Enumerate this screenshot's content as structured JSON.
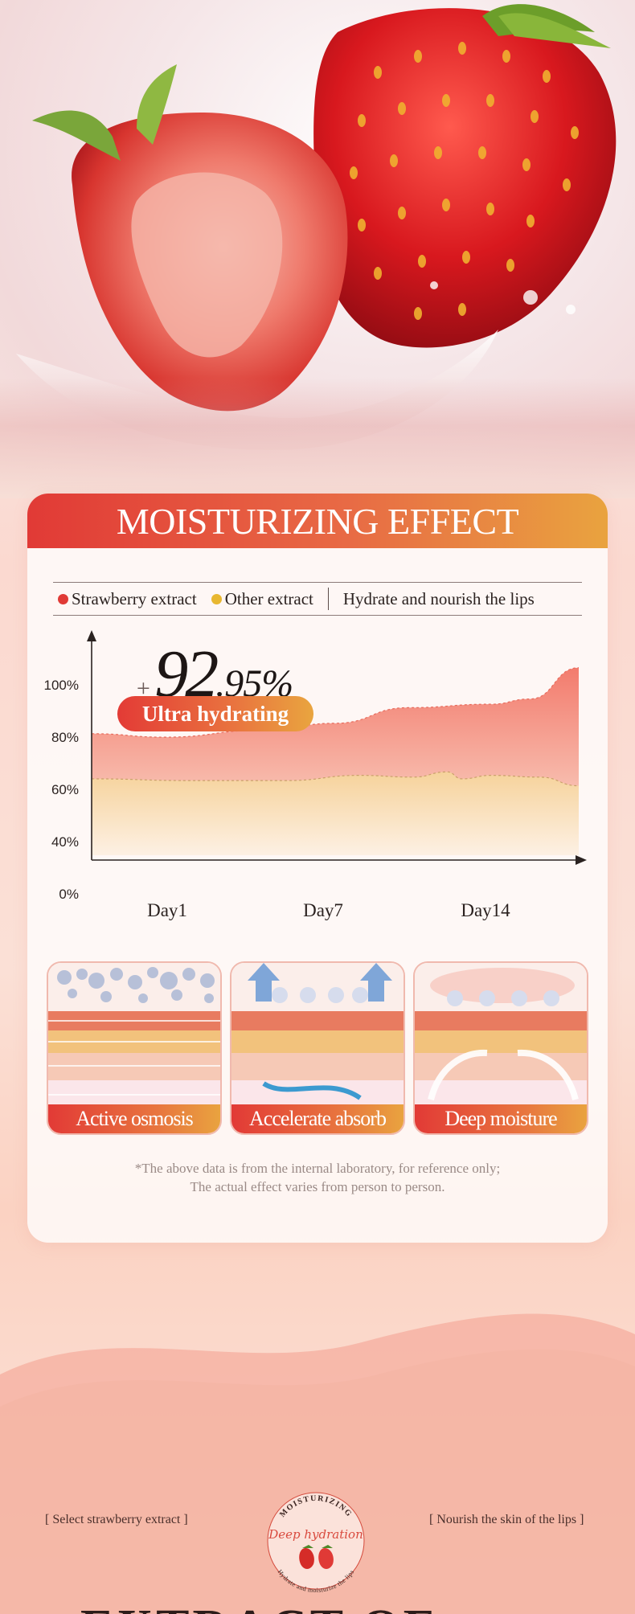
{
  "card": {
    "title": "MOISTURIZING EFFECT"
  },
  "legend": {
    "items": [
      {
        "label": "Strawberry extract",
        "color": "#e03a36"
      },
      {
        "label": "Other extract",
        "color": "#e8b730"
      }
    ],
    "note": "Hydrate and nourish the lips"
  },
  "highlight": {
    "prefix": "+",
    "integer": "92",
    "decimal": ".95%",
    "pill": "Ultra hydrating"
  },
  "chart_data": {
    "type": "area",
    "x": [
      "Day1",
      "Day7",
      "Day14"
    ],
    "y_ticks": [
      "100%",
      "80%",
      "60%",
      "40%",
      "0%"
    ],
    "ylim": [
      0,
      100
    ],
    "series": [
      {
        "name": "Strawberry extract",
        "color": "#f08a7c",
        "points": [
          [
            0,
            70
          ],
          [
            0.15,
            68
          ],
          [
            0.35,
            72
          ],
          [
            0.5,
            76
          ],
          [
            0.65,
            85
          ],
          [
            0.82,
            87
          ],
          [
            0.9,
            90
          ],
          [
            1.0,
            108
          ]
        ]
      },
      {
        "name": "Other extract",
        "color": "#f6d9a7",
        "points": [
          [
            0,
            44
          ],
          [
            0.2,
            43
          ],
          [
            0.4,
            43
          ],
          [
            0.55,
            46
          ],
          [
            0.66,
            45
          ],
          [
            0.73,
            48
          ],
          [
            0.76,
            44
          ],
          [
            0.82,
            46
          ],
          [
            0.92,
            45
          ],
          [
            1.0,
            40
          ]
        ]
      }
    ]
  },
  "features": [
    {
      "label": "Active osmosis"
    },
    {
      "label": "Accelerate absorb"
    },
    {
      "label": "Deep moisture"
    }
  ],
  "disclaimer": {
    "line1": "*The above data is from the internal laboratory, for reference only;",
    "line2": "The actual effect varies from person to person."
  },
  "bottom": {
    "left_tag": "[ Select strawberry extract ]",
    "right_tag": "[ Nourish the skin of the lips ]",
    "badge_top": "MOISTURIZING",
    "badge_script": "Deep hydration",
    "badge_ring": "Hydrate and moisturize the lips",
    "cut_text": "EXTRACT OF"
  }
}
